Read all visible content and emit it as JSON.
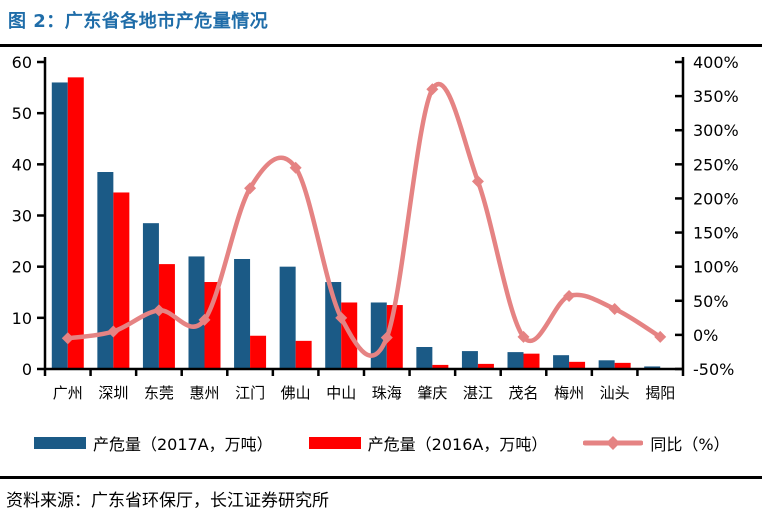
{
  "title": "图 2：广东省各地市产危量情况",
  "source": "资料来源：广东省环保厅，长江证券研究所",
  "colors": {
    "title": "#1F6DA9",
    "axis": "#000000",
    "bar_2017": "#1B5A86",
    "bar_2016": "#FF0000",
    "line_yoy": "#E58383"
  },
  "chart_data": {
    "type": "bar+line",
    "categories": [
      "广州",
      "深圳",
      "东莞",
      "惠州",
      "江门",
      "佛山",
      "中山",
      "珠海",
      "肇庆",
      "湛江",
      "茂名",
      "梅州",
      "汕头",
      "揭阳"
    ],
    "series": [
      {
        "name": "产危量（2017A，万吨）",
        "type": "bar",
        "axis": "left",
        "color": "#1B5A86",
        "values": [
          56,
          38.5,
          28.5,
          22,
          21.5,
          20,
          17,
          13,
          4.3,
          3.5,
          3.3,
          2.7,
          1.7,
          0.5
        ]
      },
      {
        "name": "产危量（2016A，万吨）",
        "type": "bar",
        "axis": "left",
        "color": "#FF0000",
        "values": [
          57,
          34.5,
          20.5,
          17,
          6.5,
          5.5,
          13,
          12.5,
          0.8,
          1.0,
          3.0,
          1.4,
          1.2,
          0.1
        ]
      },
      {
        "name": "同比（%）",
        "type": "line",
        "axis": "right",
        "color": "#E58383",
        "values": [
          -5,
          5,
          36,
          22,
          215,
          245,
          25,
          -4,
          360,
          225,
          -3,
          57,
          38,
          -3
        ]
      }
    ],
    "left_axis": {
      "min": 0,
      "max": 60,
      "step": 10,
      "tick_labels": [
        "0",
        "10",
        "20",
        "30",
        "40",
        "50",
        "60"
      ]
    },
    "right_axis": {
      "min": -50,
      "max": 400,
      "step": 50,
      "tick_labels": [
        "-50%",
        "0%",
        "50%",
        "100%",
        "150%",
        "200%",
        "250%",
        "300%",
        "350%",
        "400%"
      ]
    },
    "grid": false,
    "legend_position": "bottom"
  }
}
